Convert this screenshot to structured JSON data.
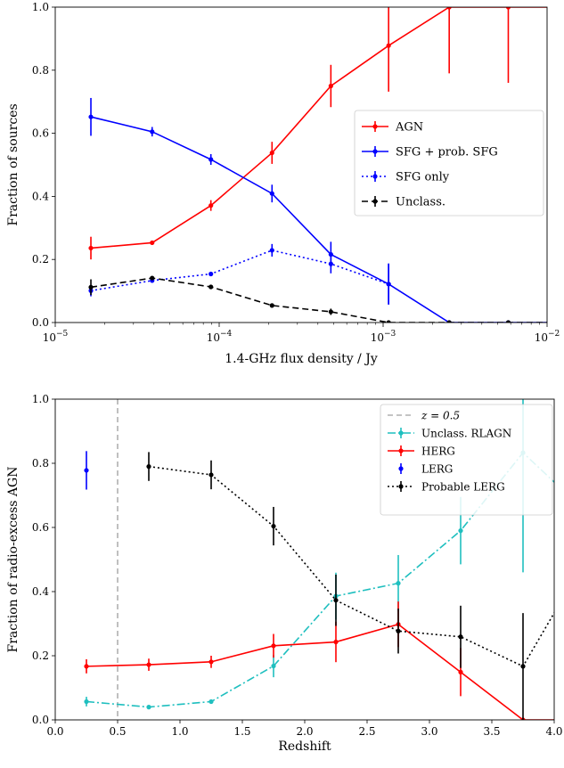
{
  "chart_data": [
    {
      "type": "line",
      "xscale": "log",
      "xlim": [
        1e-05,
        0.01
      ],
      "ylim": [
        0.0,
        1.0
      ],
      "xlabel": "1.4-GHz flux density / Jy",
      "ylabel": "Fraction of sources",
      "x_ticks": [
        {
          "value": 1e-05,
          "base": "10",
          "exp": "−5"
        },
        {
          "value": 0.0001,
          "base": "10",
          "exp": "−4"
        },
        {
          "value": 0.001,
          "base": "10",
          "exp": "−3"
        },
        {
          "value": 0.01,
          "base": "10",
          "exp": "−2"
        }
      ],
      "y_ticks": [
        "0.0",
        "0.2",
        "0.4",
        "0.6",
        "0.8",
        "1.0"
      ],
      "legend_position": "center-right",
      "series": [
        {
          "name": "AGN",
          "color": "#ff0000",
          "style": "solid",
          "x": [
            1.65e-05,
            3.9e-05,
            8.9e-05,
            0.00021,
            0.00048,
            0.00108,
            0.00253,
            0.0058,
            0.0125
          ],
          "y": [
            0.236,
            0.253,
            0.371,
            0.538,
            0.75,
            0.878,
            1.0,
            1.0,
            1.0
          ],
          "err_lo": [
            0.036,
            0.0,
            0.017,
            0.035,
            0.067,
            0.146,
            0.21,
            0.24,
            0.0
          ],
          "err_hi": [
            0.036,
            0.0,
            0.017,
            0.035,
            0.067,
            0.146,
            0.0,
            0.0,
            0.0
          ]
        },
        {
          "name": "SFG + prob. SFG",
          "color": "#0000ff",
          "style": "solid",
          "x": [
            1.65e-05,
            3.9e-05,
            8.9e-05,
            0.00021,
            0.00048,
            0.00108,
            0.00253,
            0.0058,
            0.0125
          ],
          "y": [
            0.652,
            0.605,
            0.517,
            0.409,
            0.216,
            0.122,
            0.0,
            0.0,
            0.0
          ],
          "err_lo": [
            0.06,
            0.015,
            0.017,
            0.028,
            0.04,
            0.065,
            0.0,
            0.0,
            0.0
          ],
          "err_hi": [
            0.06,
            0.015,
            0.017,
            0.028,
            0.04,
            0.065,
            0.0,
            0.0,
            0.0
          ]
        },
        {
          "name": "SFG only",
          "color": "#0000ff",
          "style": "dotted",
          "x": [
            1.65e-05,
            3.9e-05,
            8.9e-05,
            0.00021,
            0.00048,
            0.00108
          ],
          "y": [
            0.101,
            0.133,
            0.154,
            0.229,
            0.186,
            0.122
          ],
          "err_lo": [
            0.018,
            0.0,
            0.0,
            0.02,
            0.03,
            0.065
          ],
          "err_hi": [
            0.018,
            0.0,
            0.0,
            0.02,
            0.03,
            0.065
          ]
        },
        {
          "name": "Unclass.",
          "color": "#000000",
          "style": "dashed",
          "x": [
            1.65e-05,
            3.9e-05,
            8.9e-05,
            0.00021,
            0.00048,
            0.00108,
            0.00253,
            0.0058,
            0.0125
          ],
          "y": [
            0.112,
            0.141,
            0.113,
            0.054,
            0.034,
            0.0,
            0.0,
            0.0,
            0.0
          ],
          "err_lo": [
            0.025,
            0.0,
            0.0,
            0.0,
            0.01,
            0.0,
            0.0,
            0.0,
            0.0
          ],
          "err_hi": [
            0.025,
            0.0,
            0.0,
            0.0,
            0.01,
            0.0,
            0.0,
            0.0,
            0.0
          ]
        }
      ]
    },
    {
      "type": "line",
      "xscale": "linear",
      "xlim": [
        0.0,
        4.0
      ],
      "ylim": [
        0.0,
        1.0
      ],
      "xlabel": "Redshift",
      "ylabel": "Fraction of radio-excess AGN",
      "x_ticks": [
        "0.0",
        "0.5",
        "1.0",
        "1.5",
        "2.0",
        "2.5",
        "3.0",
        "3.5",
        "4.0"
      ],
      "y_ticks": [
        "0.0",
        "0.2",
        "0.4",
        "0.6",
        "0.8",
        "1.0"
      ],
      "legend_position": "top-right",
      "vline": {
        "x": 0.5,
        "label": "z = 0.5",
        "color": "#b0b0b0"
      },
      "series": [
        {
          "name": "Unclass. RLAGN",
          "color": "#1fbfbf",
          "style": "dashdot",
          "x": [
            0.25,
            0.75,
            1.25,
            1.75,
            2.25,
            2.75,
            3.25,
            3.75,
            4.25
          ],
          "y": [
            0.057,
            0.04,
            0.057,
            0.168,
            0.386,
            0.426,
            0.59,
            0.833,
            0.65
          ],
          "err_lo": [
            0.015,
            0.0,
            0.0,
            0.035,
            0.073,
            0.088,
            0.105,
            0.373,
            0.15
          ],
          "err_hi": [
            0.015,
            0.0,
            0.0,
            0.035,
            0.073,
            0.088,
            0.105,
            0.373,
            0.15
          ]
        },
        {
          "name": "HERG",
          "color": "#ff0000",
          "style": "solid",
          "x": [
            0.25,
            0.75,
            1.25,
            1.75,
            2.25,
            2.75,
            3.25,
            3.75,
            4.25
          ],
          "y": [
            0.167,
            0.172,
            0.181,
            0.231,
            0.243,
            0.298,
            0.149,
            0.0,
            0.0
          ],
          "err_lo": [
            0.022,
            0.019,
            0.019,
            0.037,
            0.063,
            0.071,
            0.075,
            0.0,
            0.0
          ],
          "err_hi": [
            0.022,
            0.019,
            0.019,
            0.037,
            0.063,
            0.071,
            0.075,
            0.0,
            0.0
          ]
        },
        {
          "name": "LERG",
          "color": "#0000ff",
          "style": "none",
          "x": [
            0.25
          ],
          "y": [
            0.778
          ],
          "err_lo": [
            0.06
          ],
          "err_hi": [
            0.06
          ]
        },
        {
          "name": "Probable LERG",
          "color": "#000000",
          "style": "dotted",
          "x": [
            0.75,
            1.25,
            1.75,
            2.25,
            2.75,
            3.25,
            3.75,
            4.25
          ],
          "y": [
            0.79,
            0.764,
            0.604,
            0.373,
            0.277,
            0.259,
            0.167,
            0.5
          ],
          "err_lo": [
            0.045,
            0.045,
            0.06,
            0.08,
            0.07,
            0.097,
            0.166,
            0.25
          ],
          "err_hi": [
            0.045,
            0.045,
            0.06,
            0.08,
            0.07,
            0.097,
            0.166,
            0.25
          ]
        }
      ]
    }
  ]
}
